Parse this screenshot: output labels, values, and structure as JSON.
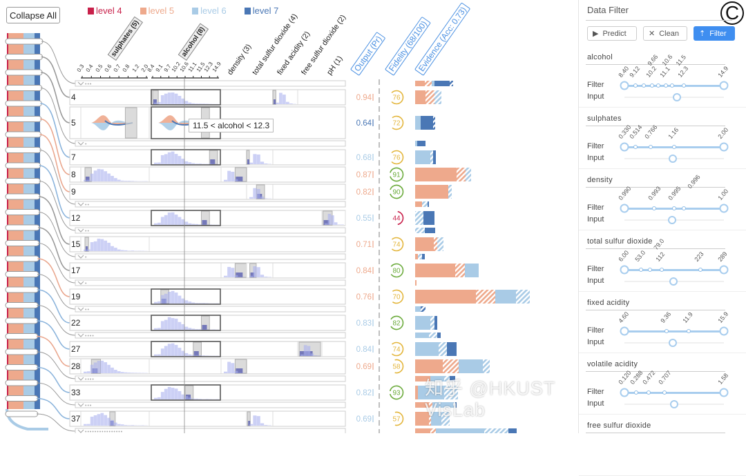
{
  "toolbar": {
    "collapse_all": "Collapse All"
  },
  "legend": [
    {
      "label": "level 4",
      "color": "#c8204a"
    },
    {
      "label": "level 5",
      "color": "#eea98c"
    },
    {
      "label": "level 6",
      "color": "#a9cbe6"
    },
    {
      "label": "level 7",
      "color": "#4a77b5"
    }
  ],
  "hatch_legend_note": "",
  "features": [
    {
      "key": "sulphates",
      "label": "sulphates (5)",
      "min": 0.33,
      "max": 2.0,
      "ticks": [
        "0.3",
        "0.4",
        "0.5",
        "0.6",
        "0.7",
        "0.8",
        "1.2",
        "2.0"
      ],
      "tick_values": [
        0.3,
        0.4,
        0.5,
        0.6,
        0.7,
        0.8,
        1.2,
        2.0
      ]
    },
    {
      "key": "alcohol",
      "label": "alcohol (8)",
      "min": 8.4,
      "max": 14.9,
      "ticks": [
        "8.4",
        "9.1",
        "9.7",
        "10.2",
        "10.6",
        "11.1",
        "11.5",
        "12.3",
        "14.9"
      ],
      "tick_values": [
        8.4,
        9.12,
        9.66,
        10.2,
        10.6,
        11.1,
        11.5,
        12.3,
        14.9
      ]
    },
    {
      "key": "density",
      "label": "density (3)",
      "min": 0.99,
      "max": 1.0
    },
    {
      "key": "total_sulfur_dioxide",
      "label": "total sulfur dioxide (4)",
      "min": 6,
      "max": 289
    },
    {
      "key": "fixed_acidity",
      "label": "fixed acidity (2)",
      "min": 4.6,
      "max": 15.9
    },
    {
      "key": "free_sulfur_dioxide",
      "label": "free sulfur dioxide (2)",
      "min": 1,
      "max": 72
    },
    {
      "key": "pH",
      "label": "pH (1)",
      "min": 2.74,
      "max": 4.01
    }
  ],
  "columns": {
    "output": "Output (Pr)",
    "fidelity": "Fidelity (68/100)",
    "evidence": "Evidence (Acc: 0.73)"
  },
  "tooltip": "11.5 < alcohol < 12.3",
  "rows": [
    {
      "type": "collapsed",
      "dots": "•••",
      "evidence": [
        [
          5,
          14,
          0
        ],
        [
          5,
          10,
          1
        ],
        [
          6,
          4,
          0
        ],
        [
          7,
          22,
          0
        ],
        [
          7,
          5,
          1
        ]
      ]
    },
    {
      "type": "rule",
      "id": "4",
      "output": "0.94",
      "level": 5,
      "fidelity": 76,
      "conditions": [
        {
          "f": "alcohol",
          "lo": 8.4,
          "hi": 8.9,
          "frame": true
        },
        {
          "f": "fixed_acidity",
          "lo": 4.6,
          "hi": 6.0
        }
      ],
      "evidence": [
        [
          5,
          15,
          0
        ],
        [
          5,
          13,
          1
        ],
        [
          6,
          10,
          1
        ]
      ]
    },
    {
      "type": "rule",
      "id": "5",
      "expanded": true,
      "output": "0.64",
      "level": 7,
      "fidelity": 72,
      "conditions": [
        {
          "f": "sulphates",
          "lo": 0.77,
          "hi": 1.18
        },
        {
          "f": "alcohol",
          "lo": 11.5,
          "hi": 12.3,
          "frame": true
        }
      ],
      "evidence": [
        [
          6,
          8,
          0
        ],
        [
          7,
          18,
          0
        ],
        [
          7,
          3,
          1
        ]
      ]
    },
    {
      "type": "collapsed",
      "dots": "•",
      "evidence": [
        [
          6,
          3,
          0
        ],
        [
          7,
          12,
          0
        ]
      ]
    },
    {
      "type": "rule",
      "id": "7",
      "output": "0.68",
      "level": 6,
      "fidelity": 76,
      "conditions": [
        {
          "f": "alcohol",
          "lo": 12.3,
          "hi": 14.9,
          "frame": true
        },
        {
          "f": "total_sulfur_dioxide",
          "lo": 6,
          "hi": 20
        }
      ],
      "evidence": [
        [
          6,
          22,
          0
        ],
        [
          6,
          4,
          1
        ],
        [
          7,
          4,
          0
        ]
      ]
    },
    {
      "type": "rule",
      "id": "8",
      "output": "0.87",
      "level": 5,
      "fidelity": 91,
      "conditions": [
        {
          "f": "sulphates",
          "lo": 0.33,
          "hi": 0.4
        },
        {
          "f": "density",
          "lo": 0.9955,
          "hi": 1.0
        }
      ],
      "evidence": [
        [
          5,
          60,
          0
        ],
        [
          5,
          13,
          1
        ],
        [
          6,
          8,
          1
        ]
      ]
    },
    {
      "type": "rule",
      "id": "9",
      "output": "0.82",
      "level": 5,
      "fidelity": 90,
      "conditions": [
        {
          "f": "total_sulfur_dioxide",
          "lo": 112,
          "hi": 200
        }
      ],
      "evidence": [
        [
          5,
          48,
          0
        ],
        [
          6,
          5,
          1
        ]
      ]
    },
    {
      "type": "collapsed",
      "dots": "••",
      "evidence": [
        [
          5,
          10,
          0
        ],
        [
          6,
          8,
          1
        ],
        [
          7,
          2,
          0
        ]
      ]
    },
    {
      "type": "rule",
      "id": "12",
      "output": "0.55",
      "level": 6,
      "fidelity": 44,
      "conditions": [
        {
          "f": "alcohol",
          "lo": 11.5,
          "hi": 12.3,
          "frame": true
        },
        {
          "f": "pH",
          "lo": 2.8,
          "hi": 3.3
        }
      ],
      "evidence": [
        [
          6,
          12,
          1
        ],
        [
          7,
          16,
          0
        ]
      ]
    },
    {
      "type": "collapsed",
      "dots": "••",
      "evidence": [
        [
          6,
          14,
          1
        ],
        [
          7,
          15,
          0
        ]
      ]
    },
    {
      "type": "rule",
      "id": "15",
      "output": "0.71",
      "level": 5,
      "fidelity": 74,
      "conditions": [
        {
          "f": "sulphates",
          "lo": 0.33,
          "hi": 0.37
        }
      ],
      "evidence": [
        [
          5,
          27,
          0
        ],
        [
          5,
          5,
          1
        ],
        [
          6,
          9,
          1
        ]
      ]
    },
    {
      "type": "collapsed",
      "dots": "•",
      "evidence": [
        [
          5,
          4,
          0
        ],
        [
          6,
          6,
          1
        ],
        [
          7,
          4,
          0
        ]
      ]
    },
    {
      "type": "rule",
      "id": "17",
      "output": "0.84",
      "level": 5,
      "fidelity": 80,
      "conditions": [
        {
          "f": "density",
          "lo": 0.9955,
          "hi": 1.0
        },
        {
          "f": "total_sulfur_dioxide",
          "lo": 40,
          "hi": 110
        }
      ],
      "evidence": [
        [
          5,
          58,
          0
        ],
        [
          5,
          14,
          1
        ],
        [
          6,
          20,
          0
        ]
      ]
    },
    {
      "type": "collapsed",
      "dots": "•",
      "evidence": [
        [
          5,
          2,
          0
        ]
      ]
    },
    {
      "type": "rule",
      "id": "19",
      "output": "0.76",
      "level": 5,
      "fidelity": 70,
      "conditions": [
        {
          "f": "alcohol",
          "lo": 9.12,
          "hi": 9.66,
          "frame": true
        }
      ],
      "evidence": [
        [
          5,
          88,
          0
        ],
        [
          5,
          28,
          1
        ],
        [
          6,
          30,
          0
        ],
        [
          6,
          20,
          1
        ]
      ]
    },
    {
      "type": "collapsed",
      "dots": "••",
      "evidence": [
        [
          6,
          8,
          0
        ],
        [
          7,
          7,
          1
        ]
      ]
    },
    {
      "type": "rule",
      "id": "22",
      "output": "0.83",
      "level": 6,
      "fidelity": 82,
      "conditions": [
        {
          "f": "alcohol",
          "lo": 11.5,
          "hi": 12.3,
          "frame": true
        }
      ],
      "evidence": [
        [
          6,
          22,
          0
        ],
        [
          6,
          6,
          1
        ],
        [
          7,
          4,
          0
        ]
      ]
    },
    {
      "type": "collapsed",
      "dots": "••••",
      "evidence": [
        [
          6,
          20,
          0
        ],
        [
          6,
          12,
          1
        ],
        [
          7,
          5,
          0
        ]
      ]
    },
    {
      "type": "rule",
      "id": "27",
      "output": "0.84",
      "level": 6,
      "fidelity": 74,
      "conditions": [
        {
          "f": "alcohol",
          "lo": 11.1,
          "hi": 11.5,
          "frame": true
        },
        {
          "f": "free_sulfur_dioxide",
          "lo": 5,
          "hi": 68
        }
      ],
      "evidence": [
        [
          6,
          34,
          0
        ],
        [
          6,
          12,
          1
        ],
        [
          7,
          14,
          0
        ]
      ]
    },
    {
      "type": "rule",
      "id": "28",
      "output": "0.69",
      "level": 5,
      "fidelity": 58,
      "conditions": [
        {
          "f": "sulphates",
          "lo": 0.4,
          "hi": 0.5
        },
        {
          "f": "density",
          "lo": 0.9955,
          "hi": 1.0
        }
      ],
      "evidence": [
        [
          5,
          40,
          0
        ],
        [
          5,
          23,
          1
        ],
        [
          6,
          35,
          0
        ],
        [
          6,
          10,
          1
        ]
      ]
    },
    {
      "type": "collapsed",
      "dots": "••••",
      "evidence": [
        [
          5,
          22,
          0
        ],
        [
          6,
          20,
          0
        ],
        [
          6,
          8,
          1
        ],
        [
          7,
          8,
          0
        ]
      ]
    },
    {
      "type": "rule",
      "id": "33",
      "output": "0.82",
      "level": 6,
      "fidelity": 93,
      "conditions": [
        {
          "f": "alcohol",
          "lo": 10.6,
          "hi": 11.1,
          "frame": true
        }
      ],
      "evidence": [
        [
          5,
          4,
          0
        ],
        [
          6,
          38,
          0
        ],
        [
          6,
          20,
          1
        ]
      ]
    },
    {
      "type": "collapsed",
      "dots": "•••",
      "evidence": [
        [
          5,
          20,
          0
        ],
        [
          5,
          5,
          1
        ],
        [
          6,
          30,
          0
        ],
        [
          6,
          3,
          1
        ],
        [
          7,
          2,
          0
        ]
      ]
    },
    {
      "type": "rule",
      "id": "37",
      "output": "0.69",
      "level": 6,
      "fidelity": 57,
      "conditions": [
        {
          "f": "sulphates",
          "lo": 0.6,
          "hi": 0.66
        },
        {
          "f": "total_sulfur_dioxide",
          "lo": 15,
          "hi": 30
        }
      ],
      "evidence": [
        [
          5,
          20,
          0
        ],
        [
          5,
          3,
          1
        ],
        [
          6,
          15,
          0
        ],
        [
          6,
          12,
          1
        ]
      ]
    },
    {
      "type": "collapsed",
      "dots": "••••••••••••••••",
      "evidence": [
        [
          5,
          22,
          0
        ],
        [
          5,
          8,
          1
        ],
        [
          6,
          70,
          0
        ],
        [
          6,
          35,
          1
        ],
        [
          7,
          12,
          0
        ]
      ]
    }
  ],
  "level_colors": {
    "4": "#c8204a",
    "5": "#eea98c",
    "6": "#a9cbe6",
    "7": "#4a77b5"
  },
  "fidelity_colors": {
    "high": "#6aaa3a",
    "mid": "#e3b53a",
    "low": "#c8204a"
  },
  "panel": {
    "title": "Data Filter",
    "view_label": "C",
    "buttons": {
      "predict": "Predict",
      "clean": "Clean",
      "filter": "Filter"
    },
    "filter_label": "Filter",
    "input_label": "Input",
    "sections": [
      {
        "title": "alcohol",
        "min": 8.4,
        "max": 14.9,
        "ticks": [
          "8.40",
          "9.12",
          "9.66",
          "10.2",
          "10.6",
          "11.1",
          "11.5",
          "12.3",
          "14.9"
        ],
        "values": [
          8.4,
          9.12,
          9.66,
          10.2,
          10.6,
          11.1,
          11.5,
          12.3,
          14.9
        ],
        "input": 11.85
      },
      {
        "title": "sulphates",
        "min": 0.33,
        "max": 2.0,
        "ticks": [
          "0.330",
          "0.514",
          "0.766",
          "1.16",
          "2.00"
        ],
        "values": [
          0.33,
          0.514,
          0.766,
          1.16,
          2.0
        ],
        "input": 1.14
      },
      {
        "title": "density",
        "min": 0.99,
        "max": 1.0,
        "ticks": [
          "0.990",
          "0.993",
          "0.995",
          "0.996",
          "1.00"
        ],
        "values": [
          0.99,
          0.993,
          0.995,
          0.996,
          1.0
        ],
        "input": 0.9948
      },
      {
        "title": "total sulfur dioxide",
        "min": 6.0,
        "max": 289,
        "ticks": [
          "6.00",
          "53.0",
          "79.0",
          "112",
          "223",
          "289"
        ],
        "values": [
          6,
          53,
          79,
          112,
          223,
          289
        ],
        "input": 145
      },
      {
        "title": "fixed acidity",
        "min": 4.6,
        "max": 15.9,
        "ticks": [
          "4.60",
          "9.36",
          "11.9",
          "15.9"
        ],
        "values": [
          4.6,
          9.36,
          11.9,
          15.9
        ],
        "input": 10.1
      },
      {
        "title": "volatile acidity",
        "min": 0.12,
        "max": 1.58,
        "ticks": [
          "0.120",
          "0.288",
          "0.472",
          "0.707",
          "1.58"
        ],
        "values": [
          0.12,
          0.288,
          0.472,
          0.707,
          1.58
        ],
        "input": 0.85
      },
      {
        "title": "free sulfur dioxide"
      }
    ]
  },
  "watermark": "知乎 @HKUST VisLab"
}
